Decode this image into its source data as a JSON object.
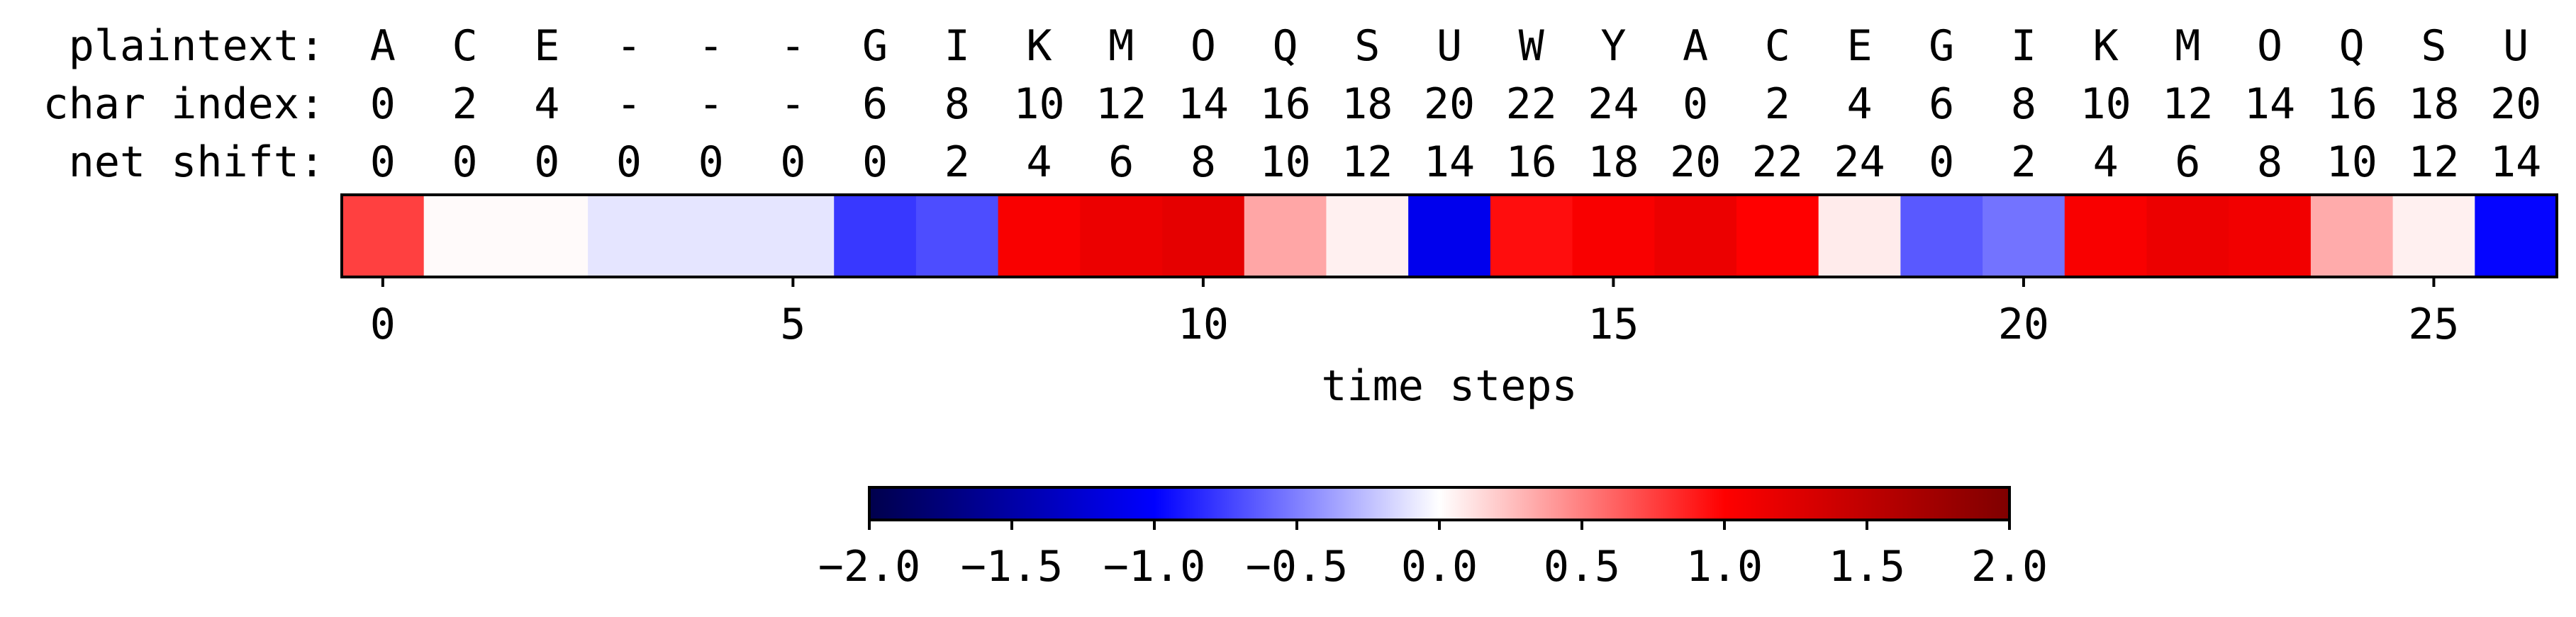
{
  "chart_data": {
    "type": "heatmap",
    "row_labels": [
      "plaintext:",
      "char index:",
      "net shift:"
    ],
    "plaintext": [
      "A",
      "C",
      "E",
      "-",
      "-",
      "-",
      "G",
      "I",
      "K",
      "M",
      "O",
      "Q",
      "S",
      "U",
      "W",
      "Y",
      "A",
      "C",
      "E",
      "G",
      "I",
      "K",
      "M",
      "O",
      "Q",
      "S",
      "U"
    ],
    "char_index": [
      "0",
      "2",
      "4",
      "-",
      "-",
      "-",
      "6",
      "8",
      "10",
      "12",
      "14",
      "16",
      "18",
      "20",
      "22",
      "24",
      "0",
      "2",
      "4",
      "6",
      "8",
      "10",
      "12",
      "14",
      "16",
      "18",
      "20"
    ],
    "net_shift": [
      "0",
      "0",
      "0",
      "0",
      "0",
      "0",
      "0",
      "2",
      "4",
      "6",
      "8",
      "10",
      "12",
      "14",
      "16",
      "18",
      "20",
      "22",
      "24",
      "0",
      "2",
      "4",
      "6",
      "8",
      "10",
      "12",
      "14"
    ],
    "values": [
      0.75,
      0.02,
      0.02,
      -0.1,
      -0.1,
      -0.1,
      -0.78,
      -0.7,
      1.05,
      1.15,
      1.2,
      0.35,
      0.06,
      -1.1,
      0.95,
      1.05,
      1.15,
      1.0,
      0.08,
      -0.65,
      -0.55,
      1.05,
      1.15,
      1.1,
      0.33,
      0.06,
      -0.98
    ],
    "xlabel": "time steps",
    "x_ticks": [
      0,
      5,
      10,
      15,
      20,
      25
    ],
    "x_tick_labels": [
      "0",
      "5",
      "10",
      "15",
      "20",
      "25"
    ],
    "colormap": "seismic",
    "colorbar": {
      "vmin": -2.0,
      "vmax": 2.0,
      "ticks": [
        -2.0,
        -1.5,
        -1.0,
        -0.5,
        0.0,
        0.5,
        1.0,
        1.5,
        2.0
      ],
      "tick_labels": [
        "−2.0",
        "−1.5",
        "−1.0",
        "−0.5",
        "0.0",
        "0.5",
        "1.0",
        "1.5",
        "2.0"
      ]
    }
  }
}
